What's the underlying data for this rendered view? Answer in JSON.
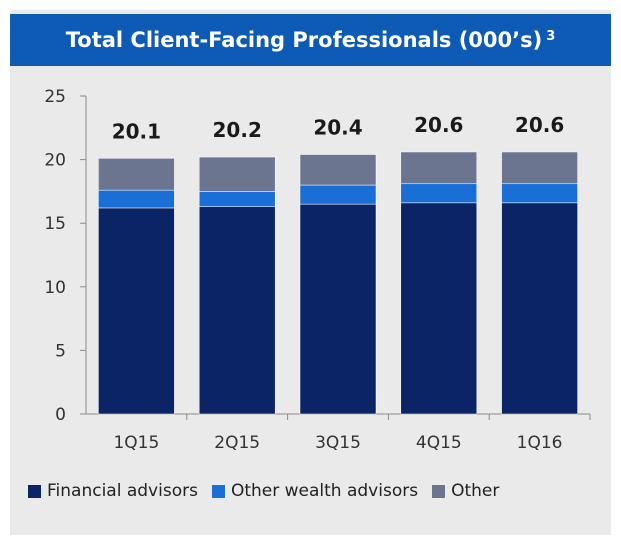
{
  "header": {
    "title": "Total Client-Facing Professionals (000’s)",
    "footnote": "3"
  },
  "chart_data": {
    "type": "bar",
    "stacked": true,
    "categories": [
      "1Q15",
      "2Q15",
      "3Q15",
      "4Q15",
      "1Q16"
    ],
    "series": [
      {
        "name": "Financial advisors",
        "color": "#0a2466",
        "values": [
          16.2,
          16.3,
          16.5,
          16.6,
          16.6
        ]
      },
      {
        "name": "Other wealth advisors",
        "color": "#1a6fd6",
        "values": [
          1.4,
          1.2,
          1.5,
          1.5,
          1.5
        ]
      },
      {
        "name": "Other",
        "color": "#6b7590",
        "values": [
          2.5,
          2.7,
          2.4,
          2.5,
          2.5
        ]
      }
    ],
    "totals": [
      "20.1",
      "20.2",
      "20.4",
      "20.6",
      "20.6"
    ],
    "ylim": [
      0,
      25
    ],
    "yticks": [
      "0",
      "5",
      "10",
      "15",
      "20",
      "25"
    ],
    "grid": false,
    "legend_position": "bottom"
  }
}
